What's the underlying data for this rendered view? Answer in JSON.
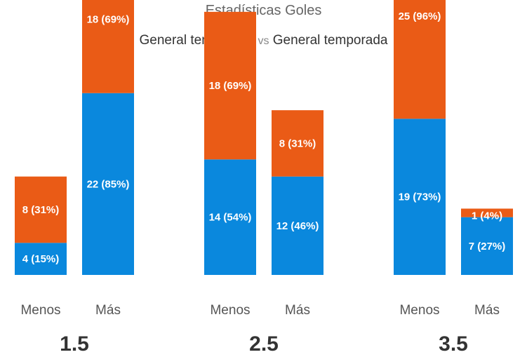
{
  "header": {
    "title": "Estadísticas Goles",
    "home_label": "General temporada",
    "vs": "vs",
    "away_label": "General temporada"
  },
  "teams": {
    "home_icon": "eibar-crest-icon",
    "away_icon": "villarreal-crest-icon"
  },
  "colors": {
    "home": "#0a88dd",
    "away": "#ea5b16"
  },
  "chart_data": {
    "type": "bar",
    "stacked": true,
    "title": "Estadísticas Goles",
    "groups": [
      {
        "line": "1.5",
        "bars": [
          {
            "category": "Menos",
            "home": {
              "count": 4,
              "pct": 15,
              "label": "4 (15%)"
            },
            "away": {
              "count": 8,
              "pct": 31,
              "label": "8 (31%)"
            }
          },
          {
            "category": "Más",
            "home": {
              "count": 22,
              "pct": 85,
              "label": "22 (85%)"
            },
            "away": {
              "count": 18,
              "pct": 69,
              "label": "18 (69%)"
            }
          }
        ]
      },
      {
        "line": "2.5",
        "bars": [
          {
            "category": "Menos",
            "home": {
              "count": 14,
              "pct": 54,
              "label": "14 (54%)"
            },
            "away": {
              "count": 18,
              "pct": 69,
              "label": "18 (69%)"
            }
          },
          {
            "category": "Más",
            "home": {
              "count": 12,
              "pct": 46,
              "label": "12 (46%)"
            },
            "away": {
              "count": 8,
              "pct": 31,
              "label": "8 (31%)"
            }
          }
        ]
      },
      {
        "line": "3.5",
        "bars": [
          {
            "category": "Menos",
            "home": {
              "count": 19,
              "pct": 73,
              "label": "19 (73%)"
            },
            "away": {
              "count": 25,
              "pct": 96,
              "label": "25 (96%)"
            }
          },
          {
            "category": "Más",
            "home": {
              "count": 7,
              "pct": 27,
              "label": "7 (27%)"
            },
            "away": {
              "count": 1,
              "pct": 4,
              "label": "1 (4%)"
            }
          }
        ]
      }
    ]
  }
}
